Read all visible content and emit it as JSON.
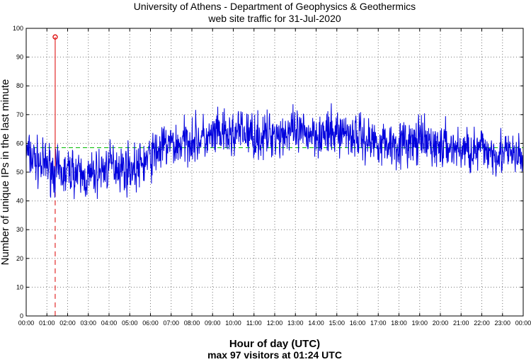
{
  "chart_data": {
    "type": "line",
    "title": "University of Athens - Department of Geophysics & Geothermics",
    "subtitle": "web site traffic for 31-Jul-2020",
    "xlabel": "Hour of day (UTC)",
    "ylabel": "Number of unique IPs in the last minute",
    "footer": "max 97 visitors at 01:24 UTC",
    "xlim": [
      0,
      24
    ],
    "ylim": [
      0,
      100
    ],
    "grid": true,
    "y_ticks": [
      "0",
      "10",
      "20",
      "30",
      "40",
      "50",
      "60",
      "70",
      "80",
      "90",
      "100"
    ],
    "x_ticks": [
      "00:00",
      "01:00",
      "02:00",
      "03:00",
      "04:00",
      "05:00",
      "06:00",
      "07:00",
      "08:00",
      "09:00",
      "10:00",
      "11:00",
      "12:00",
      "13:00",
      "14:00",
      "15:00",
      "16:00",
      "17:00",
      "18:00",
      "19:00",
      "20:00",
      "21:00",
      "22:00",
      "23:00",
      "00:00"
    ],
    "series": [
      {
        "color": "#0000dd",
        "x": [
          0,
          0.25,
          0.5,
          0.75,
          1,
          1.25,
          1.4,
          1.5,
          1.75,
          2,
          2.25,
          2.5,
          2.75,
          3,
          3.25,
          3.5,
          3.75,
          4,
          4.25,
          4.5,
          4.75,
          5,
          5.25,
          5.5,
          5.75,
          6,
          6.25,
          6.5,
          6.75,
          7,
          7.25,
          7.5,
          7.75,
          8,
          8.25,
          8.5,
          8.75,
          9,
          9.25,
          9.5,
          9.75,
          10,
          10.25,
          10.5,
          10.75,
          11,
          11.25,
          11.5,
          11.75,
          12,
          12.25,
          12.5,
          12.75,
          13,
          13.25,
          13.5,
          13.75,
          14,
          14.25,
          14.5,
          14.75,
          15,
          15.25,
          15.5,
          15.75,
          16,
          16.25,
          16.5,
          16.75,
          17,
          17.25,
          17.5,
          17.75,
          18,
          18.25,
          18.5,
          18.75,
          19,
          19.25,
          19.5,
          19.75,
          20,
          20.25,
          20.5,
          20.75,
          21,
          21.25,
          21.5,
          21.75,
          22,
          22.25,
          22.5,
          22.75,
          23,
          23.25,
          23.5,
          23.75,
          24
        ],
        "y": [
          57,
          55,
          54,
          52,
          53,
          51,
          97,
          50,
          49,
          50,
          51,
          49,
          48,
          48,
          49,
          50,
          51,
          52,
          53,
          52,
          51,
          52,
          51,
          52,
          54,
          55,
          57,
          58,
          59,
          60,
          59,
          60,
          61,
          62,
          61,
          62,
          61,
          62,
          63,
          63,
          62,
          63,
          64,
          64,
          63,
          63,
          62,
          62,
          63,
          64,
          63,
          64,
          64,
          63,
          63,
          63,
          64,
          64,
          63,
          63,
          63,
          64,
          64,
          64,
          63,
          63,
          62,
          61,
          61,
          61,
          60,
          60,
          60,
          60,
          60,
          60,
          60,
          61,
          60,
          60,
          59,
          59,
          59,
          59,
          58,
          58,
          58,
          58,
          57,
          58,
          58,
          57,
          57,
          57,
          56,
          56,
          55,
          55
        ]
      }
    ],
    "mean_line": {
      "value": 58.5,
      "color": "#00bb00"
    },
    "max_marker": {
      "x": 1.4,
      "y": 97,
      "color": "#dd0000"
    }
  }
}
